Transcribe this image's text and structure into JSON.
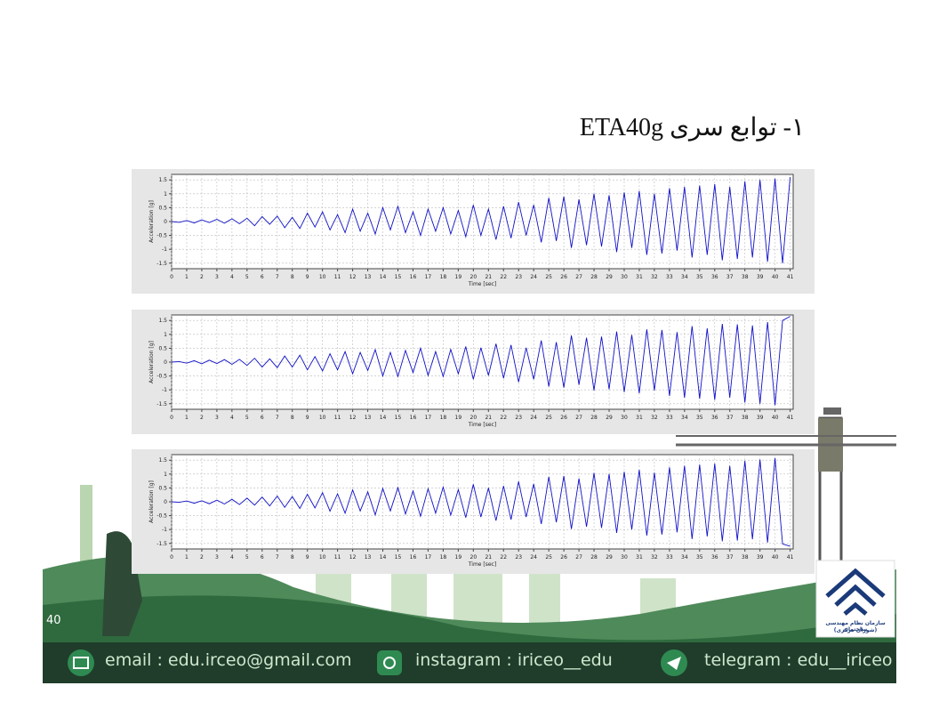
{
  "slide": {
    "title": "۱- توابع سری ETA40g",
    "page_number": "40",
    "footer": {
      "email": "email : edu.irceo@gmail.com",
      "instagram": "instagram : iriceo__edu",
      "telegram": "telegram : edu__iriceo"
    },
    "logo": {
      "line1": "سازمان نظام مهندسی ساختمان",
      "line2": "(شورای مرکزی)"
    }
  },
  "chart_data": [
    {
      "type": "line",
      "xlabel": "Time [sec]",
      "ylabel": "Acceleration [g]",
      "color": "#1010c8",
      "grid": true,
      "xlim": [
        0,
        41.2
      ],
      "ylim": [
        -1.7,
        1.7
      ],
      "xticks": [
        0,
        1,
        2,
        3,
        4,
        5,
        6,
        7,
        8,
        9,
        10,
        11,
        12,
        13,
        14,
        15,
        16,
        17,
        18,
        19,
        20,
        21,
        22,
        23,
        24,
        25,
        26,
        27,
        28,
        29,
        30,
        31,
        32,
        33,
        34,
        35,
        36,
        37,
        38,
        39,
        40,
        41
      ],
      "yticks": [
        -1.5,
        -1,
        -0.5,
        0,
        0.5,
        1,
        1.5
      ],
      "x": [
        0,
        0.5,
        1,
        1.5,
        2,
        2.5,
        3,
        3.5,
        4,
        4.5,
        5,
        5.5,
        6,
        6.5,
        7,
        7.5,
        8,
        8.5,
        9,
        9.5,
        10,
        10.5,
        11,
        11.5,
        12,
        12.5,
        13,
        13.5,
        14,
        14.5,
        15,
        15.5,
        16,
        16.5,
        17,
        17.5,
        18,
        18.5,
        19,
        19.5,
        20,
        20.5,
        21,
        21.5,
        22,
        22.5,
        23,
        23.5,
        24,
        24.5,
        25,
        25.5,
        26,
        26.5,
        27,
        27.5,
        28,
        28.5,
        29,
        29.5,
        30,
        30.5,
        31,
        31.5,
        32,
        32.5,
        33,
        33.5,
        34,
        34.5,
        35,
        35.5,
        36,
        36.5,
        37,
        37.5,
        38,
        38.5,
        39,
        39.5,
        40,
        40.5,
        41
      ],
      "values": [
        0,
        -0.03,
        0.04,
        -0.05,
        0.06,
        -0.04,
        0.08,
        -0.06,
        0.1,
        -0.08,
        0.12,
        -0.15,
        0.18,
        -0.1,
        0.2,
        -0.22,
        0.15,
        -0.25,
        0.3,
        -0.2,
        0.35,
        -0.3,
        0.25,
        -0.4,
        0.45,
        -0.35,
        0.3,
        -0.45,
        0.5,
        -0.3,
        0.55,
        -0.4,
        0.35,
        -0.5,
        0.45,
        -0.35,
        0.5,
        -0.45,
        0.4,
        -0.55,
        0.6,
        -0.5,
        0.45,
        -0.65,
        0.55,
        -0.6,
        0.7,
        -0.5,
        0.6,
        -0.75,
        0.85,
        -0.7,
        0.9,
        -0.95,
        0.8,
        -0.85,
        1.0,
        -0.9,
        0.95,
        -1.1,
        1.05,
        -0.95,
        1.1,
        -1.2,
        1.0,
        -1.15,
        1.2,
        -1.05,
        1.25,
        -1.3,
        1.3,
        -1.2,
        1.35,
        -1.4,
        1.25,
        -1.35,
        1.45,
        -1.3,
        1.5,
        -1.45,
        1.55,
        -1.5,
        1.6
      ]
    },
    {
      "type": "line",
      "xlabel": "Time [sec]",
      "ylabel": "Acceleration [g]",
      "color": "#1010c8",
      "grid": true,
      "xlim": [
        0,
        41.2
      ],
      "ylim": [
        -1.7,
        1.7
      ],
      "xticks": [
        0,
        1,
        2,
        3,
        4,
        5,
        6,
        7,
        8,
        9,
        10,
        11,
        12,
        13,
        14,
        15,
        16,
        17,
        18,
        19,
        20,
        21,
        22,
        23,
        24,
        25,
        26,
        27,
        28,
        29,
        30,
        31,
        32,
        33,
        34,
        35,
        36,
        37,
        38,
        39,
        40,
        41
      ],
      "yticks": [
        -1.5,
        -1,
        -0.5,
        0,
        0.5,
        1,
        1.5
      ],
      "x": [
        0,
        0.5,
        1,
        1.5,
        2,
        2.5,
        3,
        3.5,
        4,
        4.5,
        5,
        5.5,
        6,
        6.5,
        7,
        7.5,
        8,
        8.5,
        9,
        9.5,
        10,
        10.5,
        11,
        11.5,
        12,
        12.5,
        13,
        13.5,
        14,
        14.5,
        15,
        15.5,
        16,
        16.5,
        17,
        17.5,
        18,
        18.5,
        19,
        19.5,
        20,
        20.5,
        21,
        21.5,
        22,
        22.5,
        23,
        23.5,
        24,
        24.5,
        25,
        25.5,
        26,
        26.5,
        27,
        27.5,
        28,
        28.5,
        29,
        29.5,
        30,
        30.5,
        31,
        31.5,
        32,
        32.5,
        33,
        33.5,
        34,
        34.5,
        35,
        35.5,
        36,
        36.5,
        37,
        37.5,
        38,
        38.5,
        39,
        39.5,
        40,
        40.5,
        41
      ],
      "values": [
        0,
        0.02,
        -0.04,
        0.05,
        -0.06,
        0.07,
        -0.05,
        0.09,
        -0.08,
        0.1,
        -0.12,
        0.14,
        -0.18,
        0.12,
        -0.2,
        0.22,
        -0.18,
        0.25,
        -0.28,
        0.2,
        -0.32,
        0.3,
        -0.28,
        0.38,
        -0.42,
        0.35,
        -0.3,
        0.45,
        -0.5,
        0.35,
        -0.52,
        0.42,
        -0.38,
        0.5,
        -0.48,
        0.38,
        -0.52,
        0.46,
        -0.42,
        0.56,
        -0.62,
        0.52,
        -0.48,
        0.66,
        -0.58,
        0.62,
        -0.72,
        0.52,
        -0.62,
        0.78,
        -0.88,
        0.72,
        -0.92,
        0.96,
        -0.82,
        0.88,
        -1.02,
        0.92,
        -0.98,
        1.1,
        -1.08,
        0.98,
        -1.12,
        1.18,
        -1.02,
        1.16,
        -1.22,
        1.08,
        -1.28,
        1.3,
        -1.32,
        1.22,
        -1.36,
        1.38,
        -1.28,
        1.36,
        -1.46,
        1.32,
        -1.5,
        1.44,
        -1.56,
        1.5,
        1.65
      ]
    },
    {
      "type": "line",
      "xlabel": "Time [sec]",
      "ylabel": "Acceleration [g]",
      "color": "#1010c8",
      "grid": true,
      "xlim": [
        0,
        41.2
      ],
      "ylim": [
        -1.7,
        1.7
      ],
      "xticks": [
        0,
        1,
        2,
        3,
        4,
        5,
        6,
        7,
        8,
        9,
        10,
        11,
        12,
        13,
        14,
        15,
        16,
        17,
        18,
        19,
        20,
        21,
        22,
        23,
        24,
        25,
        26,
        27,
        28,
        29,
        30,
        31,
        32,
        33,
        34,
        35,
        36,
        37,
        38,
        39,
        40,
        41
      ],
      "yticks": [
        -1.5,
        -1,
        -0.5,
        0,
        0.5,
        1,
        1.5
      ],
      "x": [
        0,
        0.5,
        1,
        1.5,
        2,
        2.5,
        3,
        3.5,
        4,
        4.5,
        5,
        5.5,
        6,
        6.5,
        7,
        7.5,
        8,
        8.5,
        9,
        9.5,
        10,
        10.5,
        11,
        11.5,
        12,
        12.5,
        13,
        13.5,
        14,
        14.5,
        15,
        15.5,
        16,
        16.5,
        17,
        17.5,
        18,
        18.5,
        19,
        19.5,
        20,
        20.5,
        21,
        21.5,
        22,
        22.5,
        23,
        23.5,
        24,
        24.5,
        25,
        25.5,
        26,
        26.5,
        27,
        27.5,
        28,
        28.5,
        29,
        29.5,
        30,
        30.5,
        31,
        31.5,
        32,
        32.5,
        33,
        33.5,
        34,
        34.5,
        35,
        35.5,
        36,
        36.5,
        37,
        37.5,
        38,
        38.5,
        39,
        39.5,
        40,
        40.5,
        41
      ],
      "values": [
        0,
        -0.02,
        0.03,
        -0.05,
        0.04,
        -0.07,
        0.06,
        -0.08,
        0.09,
        -0.1,
        0.13,
        -0.12,
        0.17,
        -0.15,
        0.21,
        -0.2,
        0.19,
        -0.24,
        0.27,
        -0.22,
        0.33,
        -0.34,
        0.29,
        -0.41,
        0.43,
        -0.33,
        0.36,
        -0.47,
        0.48,
        -0.33,
        0.51,
        -0.44,
        0.39,
        -0.52,
        0.47,
        -0.41,
        0.53,
        -0.48,
        0.44,
        -0.57,
        0.63,
        -0.55,
        0.5,
        -0.68,
        0.57,
        -0.64,
        0.73,
        -0.55,
        0.64,
        -0.8,
        0.9,
        -0.74,
        0.93,
        -0.98,
        0.84,
        -0.9,
        1.04,
        -0.94,
        1.0,
        -1.12,
        1.08,
        -1.0,
        1.15,
        -1.22,
        1.05,
        -1.18,
        1.24,
        -1.1,
        1.3,
        -1.34,
        1.34,
        -1.25,
        1.38,
        -1.42,
        1.3,
        -1.4,
        1.48,
        -1.35,
        1.52,
        -1.47,
        1.58,
        -1.52,
        -1.6
      ]
    }
  ]
}
